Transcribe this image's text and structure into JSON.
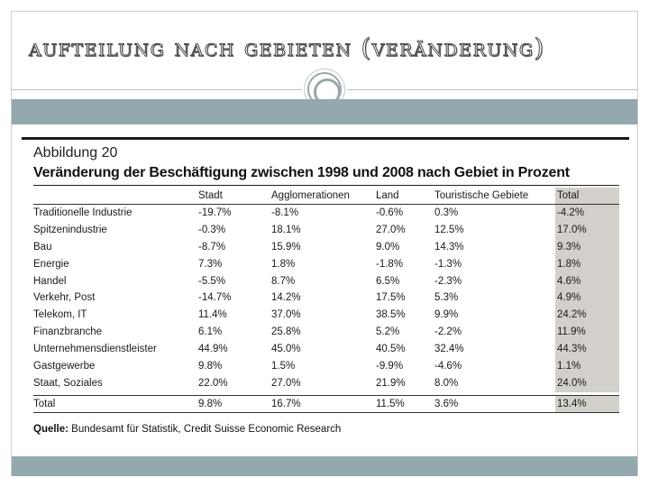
{
  "slide": {
    "title": "Aufteilung nach Gebieten (Veränderung)"
  },
  "figure": {
    "label": "Abbildung 20",
    "heading": "Veränderung der Beschäftigung zwischen 1998 und 2008 nach Gebiet in Prozent",
    "columns": [
      "",
      "Stadt",
      "Agglomerationen",
      "Land",
      "Touristische Gebiete",
      "Total"
    ],
    "rows": [
      {
        "name": "Traditionelle Industrie",
        "values": [
          "-19.7%",
          "-8.1%",
          "-0.6%",
          "0.3%",
          "-4.2%"
        ]
      },
      {
        "name": "Spitzenindustrie",
        "values": [
          "-0.3%",
          "18.1%",
          "27.0%",
          "12.5%",
          "17.0%"
        ]
      },
      {
        "name": "Bau",
        "values": [
          "-8.7%",
          "15.9%",
          "9.0%",
          "14.3%",
          "9.3%"
        ]
      },
      {
        "name": "Energie",
        "values": [
          "7.3%",
          "1.8%",
          "-1.8%",
          "-1.3%",
          "1.8%"
        ]
      },
      {
        "name": "Handel",
        "values": [
          "-5.5%",
          "8.7%",
          "6.5%",
          "-2.3%",
          "4.6%"
        ]
      },
      {
        "name": "Verkehr, Post",
        "values": [
          "-14.7%",
          "14.2%",
          "17.5%",
          "5.3%",
          "4.9%"
        ]
      },
      {
        "name": "Telekom, IT",
        "values": [
          "11.4%",
          "37.0%",
          "38.5%",
          "9.9%",
          "24.2%"
        ]
      },
      {
        "name": "Finanzbranche",
        "values": [
          "6.1%",
          "25.8%",
          "5.2%",
          "-2.2%",
          "11.9%"
        ]
      },
      {
        "name": "Unternehmensdienstleister",
        "values": [
          "44.9%",
          "45.0%",
          "40.5%",
          "32.4%",
          "44.3%"
        ]
      },
      {
        "name": "Gastgewerbe",
        "values": [
          "9.8%",
          "1.5%",
          "-9.9%",
          "-4.6%",
          "1.1%"
        ]
      },
      {
        "name": "Staat, Soziales",
        "values": [
          "22.0%",
          "27.0%",
          "21.9%",
          "8.0%",
          "24.0%"
        ]
      }
    ],
    "total": {
      "name": "Total",
      "values": [
        "9.8%",
        "16.7%",
        "11.5%",
        "3.6%",
        "13.4%"
      ]
    },
    "source_label": "Quelle:",
    "source_text": " Bundesamt für Statistik, Credit Suisse Economic Research"
  },
  "colors": {
    "band": "#93a9ad",
    "total_column": "#d3cfca"
  }
}
